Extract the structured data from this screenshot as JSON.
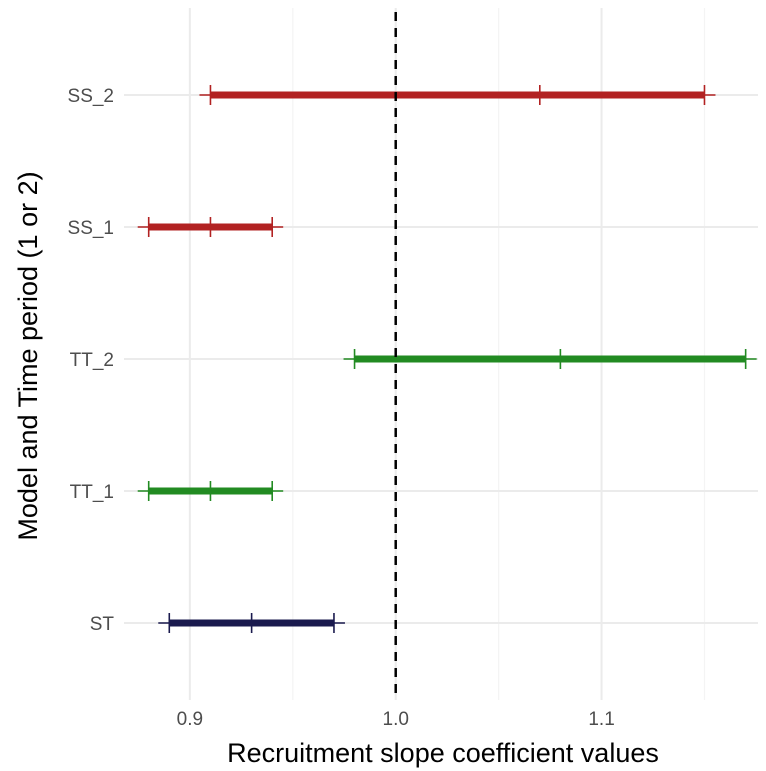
{
  "chart_data": {
    "type": "interval",
    "xlabel": "Recruitment slope coefficient values",
    "ylabel": "Model and Time period (1 or 2)",
    "xlim": [
      0.868,
      1.176
    ],
    "x_ticks": [
      0.9,
      1.0,
      1.1
    ],
    "x_tick_labels": [
      "0.9",
      "1.0",
      "1.1"
    ],
    "categories": [
      "ST",
      "TT_1",
      "TT_2",
      "SS_1",
      "SS_2"
    ],
    "reference_line": {
      "x": 1.0,
      "style": "dashed"
    },
    "grid": true,
    "legend": "none",
    "series": [
      {
        "category": "SS_2",
        "lower": 0.91,
        "estimate": 1.07,
        "upper": 1.15,
        "color": "#B22222"
      },
      {
        "category": "SS_1",
        "lower": 0.88,
        "estimate": 0.91,
        "upper": 0.94,
        "color": "#B22222"
      },
      {
        "category": "TT_2",
        "lower": 0.98,
        "estimate": 1.08,
        "upper": 1.17,
        "color": "#228B22"
      },
      {
        "category": "TT_1",
        "lower": 0.88,
        "estimate": 0.91,
        "upper": 0.94,
        "color": "#228B22"
      },
      {
        "category": "ST",
        "lower": 0.89,
        "estimate": 0.93,
        "upper": 0.97,
        "color": "#1A1A4E"
      }
    ]
  }
}
